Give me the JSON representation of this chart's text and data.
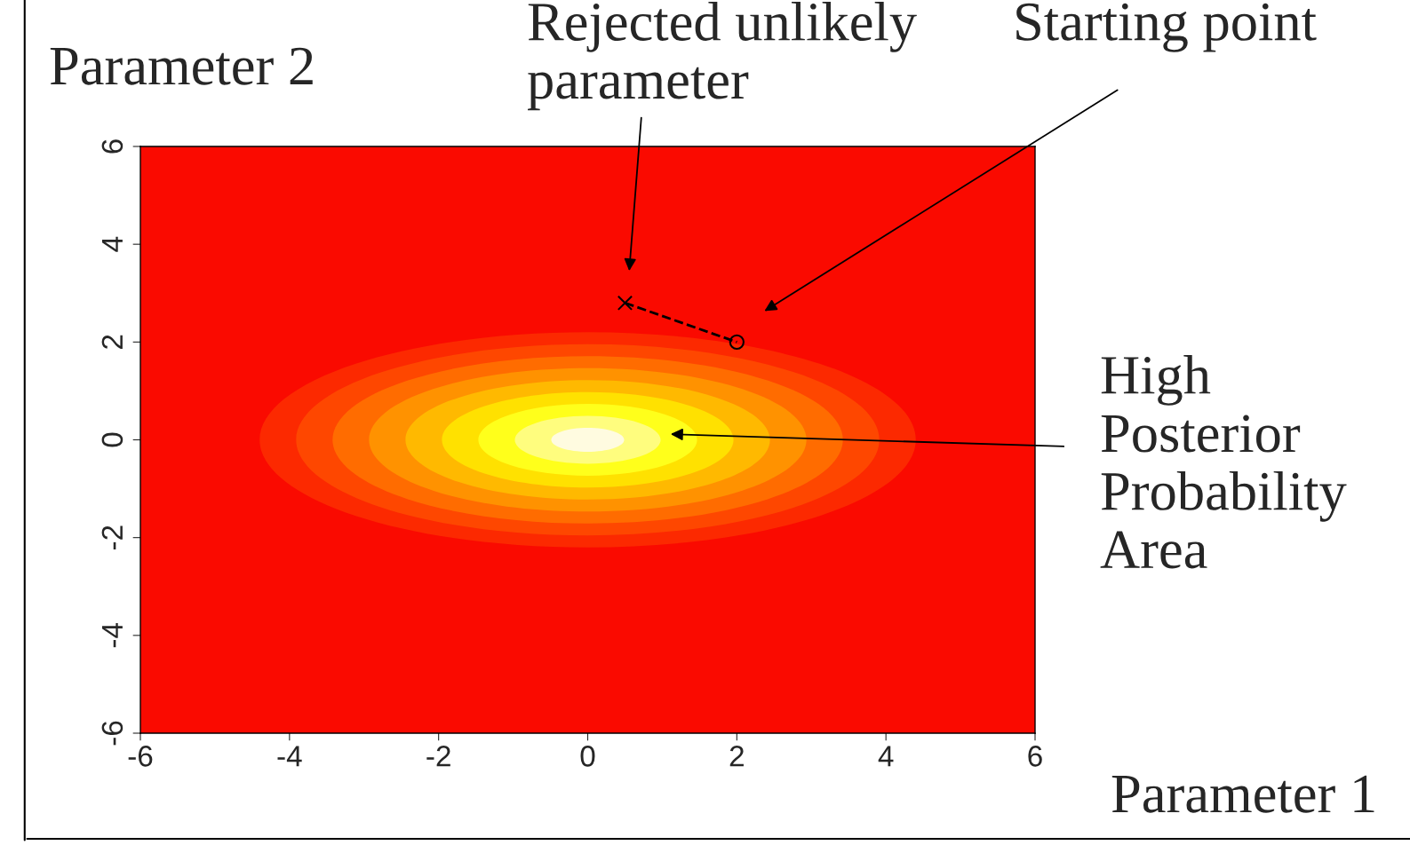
{
  "chart_data": {
    "type": "scatter",
    "xlabel": "Parameter 1",
    "ylabel": "Parameter 2",
    "xlim": [
      -6,
      6
    ],
    "ylim": [
      -6,
      6
    ],
    "xticks": [
      -6,
      -4,
      -2,
      0,
      2,
      4,
      6
    ],
    "yticks": [
      -6,
      -4,
      -2,
      0,
      2,
      4,
      6
    ],
    "grid": false,
    "x": [
      0.5,
      2
    ],
    "series": [
      {
        "type": "line",
        "values": [
          2.8,
          2
        ],
        "color": "#000000",
        "line_style": "dashed",
        "marker": "none"
      },
      {
        "values": [
          2.8,
          null
        ],
        "color": "#000000",
        "marker": "cross"
      },
      {
        "values": [
          null,
          2
        ],
        "color": "#000000",
        "marker": "circle"
      }
    ],
    "annotations": [
      "Rejected unlikely\nparameter",
      "Starting point",
      "High\nPosterior\nProbability\nArea"
    ]
  }
}
